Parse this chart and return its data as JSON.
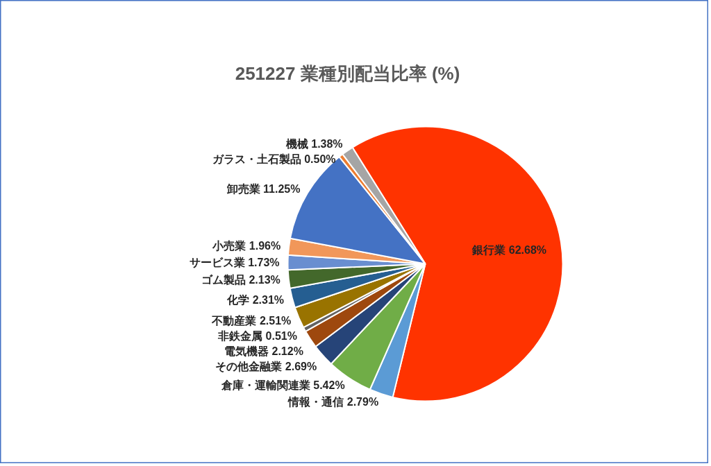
{
  "chart_data": {
    "type": "pie",
    "title": "251227 業種別配当比率 (%)",
    "categories": [
      "銀行業",
      "情報・通信",
      "倉庫・運輸関連業",
      "その他金融業",
      "電気機器",
      "非鉄金属",
      "不動産業",
      "化学",
      "ゴム製品",
      "サービス業",
      "小売業",
      "卸売業",
      "ガラス・土石製品",
      "機械"
    ],
    "values": [
      62.68,
      2.79,
      5.42,
      2.69,
      2.12,
      0.51,
      2.51,
      2.31,
      2.13,
      1.73,
      1.96,
      11.25,
      0.5,
      1.38
    ],
    "value_labels": [
      "62.68%",
      "2.79%",
      "5.42%",
      "2.69%",
      "2.12%",
      "0.51%",
      "2.51%",
      "2.31%",
      "2.13%",
      "1.73%",
      "1.96%",
      "11.25%",
      "0.50%",
      "1.38%"
    ],
    "colors": [
      "#ff3300",
      "#5b9bd5",
      "#70ad47",
      "#264478",
      "#9e480e",
      "#636363",
      "#997300",
      "#255e91",
      "#43682b",
      "#698ed0",
      "#f1975a",
      "#4472c4",
      "#ed7d31",
      "#a5a5a5"
    ]
  }
}
